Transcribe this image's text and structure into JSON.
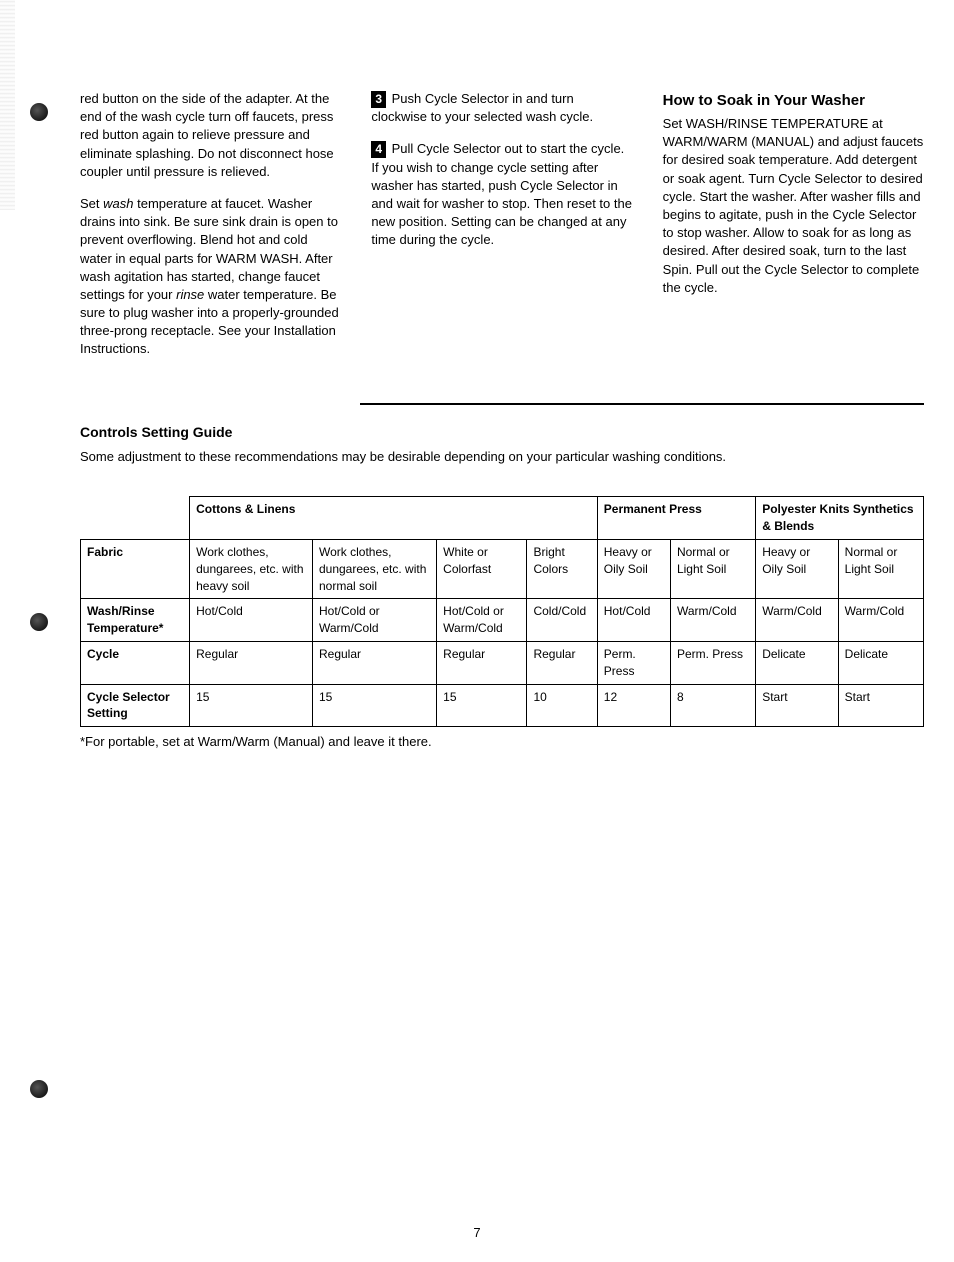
{
  "col1": {
    "p1a": "red button on the side of the adapter. At the end of the wash cycle turn off faucets, press red button again to relieve pressure and eliminate splashing. Do not disconnect hose coupler until pressure is relieved.",
    "p2_pre": "Set ",
    "p2_wash": "wash",
    "p2_mid": " temperature at faucet. Washer drains into sink. Be sure sink drain is open to prevent overflowing. Blend hot and cold water in equal parts for WARM WASH. After wash agitation has started, change faucet settings for your ",
    "p2_rinse": "rinse",
    "p2_end": " water temperature. Be sure to plug washer into a properly-grounded three-prong receptacle. See your Installation Instructions."
  },
  "col2": {
    "step3_num": "3",
    "step3": " Push Cycle Selector in and turn clockwise to your selected wash cycle.",
    "step4_num": "4",
    "step4": " Pull Cycle Selector out to start the cycle. If you wish to change cycle setting after washer has started, push Cycle Selector in and wait for washer to stop. Then reset to the new position. Setting can be changed at any time during the cycle."
  },
  "col3": {
    "heading": "How to Soak in Your Washer",
    "text": "Set WASH/RINSE TEMPERATURE at WARM/WARM (MANUAL) and adjust faucets for desired soak temperature. Add detergent or soak agent. Turn Cycle Selector to desired cycle. Start the washer. After washer fills and begins to agitate, push in the Cycle Selector to stop washer. Allow to soak for as long as desired. After desired soak, turn to the last Spin. Pull out the Cycle Selector to complete the cycle."
  },
  "guide": {
    "heading": "Controls Setting Guide",
    "intro": "Some adjustment to these recommendations may be desirable depending on your particular washing conditions.",
    "footnote": "*For portable, set at Warm/Warm (Manual) and leave it there."
  },
  "table": {
    "group_headers": [
      "Cottons & Linens",
      "Permanent Press",
      "Polyester Knits Synthetics & Blends"
    ],
    "fabric_label": "Fabric",
    "fabric_cols": [
      "Work clothes, dungarees, etc. with heavy soil",
      "Work clothes, dungarees, etc. with normal soil",
      "White or Colorfast",
      "Bright Colors",
      "Heavy or Oily Soil",
      "Normal or Light Soil",
      "Heavy or Oily Soil",
      "Normal or Light Soil"
    ],
    "rows": [
      {
        "label": "Wash/Rinse Temperature*",
        "cells": [
          "Hot/Cold",
          "Hot/Cold or Warm/Cold",
          "Hot/Cold or Warm/Cold",
          "Cold/Cold",
          "Hot/Cold",
          "Warm/Cold",
          "Warm/Cold",
          "Warm/Cold"
        ]
      },
      {
        "label": "Cycle",
        "cells": [
          "Regular",
          "Regular",
          "Regular",
          "Regular",
          "Perm. Press",
          "Perm. Press",
          "Delicate",
          "Delicate"
        ]
      },
      {
        "label": "Cycle Selector Setting",
        "cells": [
          "15",
          "15",
          "15",
          "10",
          "12",
          "8",
          "Start",
          "Start"
        ]
      }
    ]
  },
  "page_number": "7"
}
